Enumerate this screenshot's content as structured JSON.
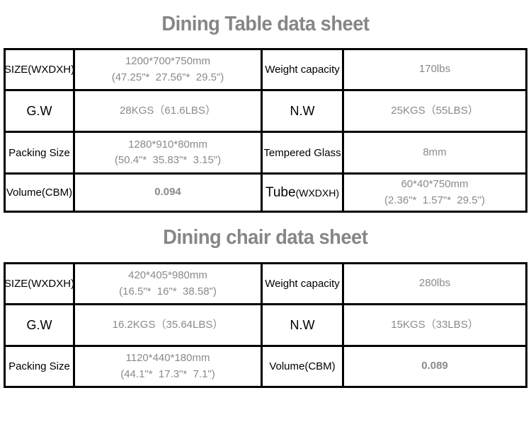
{
  "colors": {
    "background": "#ffffff",
    "table_border": "#000000",
    "title_text": "#868686",
    "label_text": "#000000",
    "value_text": "#8a8a8a"
  },
  "tables": [
    {
      "title": "Dining Table data sheet",
      "rows": [
        {
          "cells": [
            {
              "label": "SIZE(WXDXH)"
            },
            {
              "line1": "1200*700*750mm",
              "line2": "(47.25\"*  27.56\"*  29.5\")"
            },
            {
              "label": "Weight capacity"
            },
            {
              "line1": "170lbs"
            }
          ]
        },
        {
          "cells": [
            {
              "label": "G.W"
            },
            {
              "line1": "28KGS（61.6LBS）"
            },
            {
              "label": "N.W"
            },
            {
              "line1": "25KGS（55LBS）"
            }
          ]
        },
        {
          "cells": [
            {
              "label": "Packing Size"
            },
            {
              "line1": "1280*910*80mm",
              "line2": "(50.4\"*  35.83\"*  3.15\")"
            },
            {
              "label": "Tempered Glass"
            },
            {
              "line1": "8mm"
            }
          ]
        },
        {
          "cells": [
            {
              "label": "Volume(CBM)"
            },
            {
              "line1": "0.094"
            },
            {
              "label": "Tube",
              "label_sub": "(WXDXH)"
            },
            {
              "line1": "60*40*750mm",
              "line2": "(2.36\"*  1.57\"*  29.5\")"
            }
          ]
        }
      ]
    },
    {
      "title": "Dining chair data sheet",
      "rows": [
        {
          "cells": [
            {
              "label": "SIZE(WXDXH)"
            },
            {
              "line1": "420*405*980mm",
              "line2": "(16.5\"*  16\"*  38.58\")"
            },
            {
              "label": "Weight capacity"
            },
            {
              "line1": "280lbs"
            }
          ]
        },
        {
          "cells": [
            {
              "label": "G.W"
            },
            {
              "line1": "16.2KGS（35.64LBS）"
            },
            {
              "label": "N.W"
            },
            {
              "line1": "15KGS（33LBS）"
            }
          ]
        },
        {
          "cells": [
            {
              "label": "Packing Size"
            },
            {
              "line1": "1120*440*180mm",
              "line2": "(44.1\"*  17.3\"*  7.1\")"
            },
            {
              "label": "Volume(CBM)"
            },
            {
              "line1": "0.089"
            }
          ]
        }
      ]
    }
  ]
}
